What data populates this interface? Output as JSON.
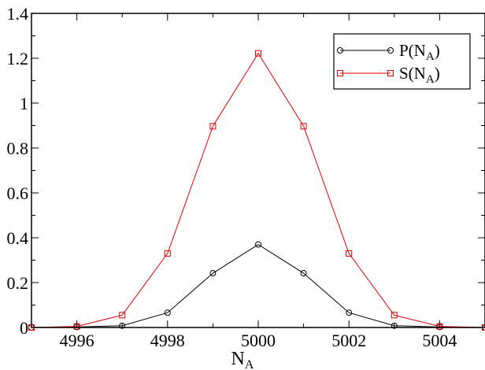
{
  "chart_data": {
    "type": "line",
    "title": "",
    "xlabel": "N",
    "xlabel_sub": "A",
    "ylabel": "",
    "xlim": [
      4995,
      5005
    ],
    "ylim": [
      0,
      1.4
    ],
    "x_ticks": [
      4996,
      4998,
      5000,
      5002,
      5004
    ],
    "y_ticks": [
      0,
      0.2,
      0.4,
      0.6,
      0.8,
      1,
      1.2,
      1.4
    ],
    "grid": false,
    "legend_placement": "top-right",
    "x": [
      4995,
      4996,
      4997,
      4998,
      4999,
      5000,
      5001,
      5002,
      5003,
      5004,
      5005
    ],
    "series": [
      {
        "name": "P(N",
        "name_sub": "A",
        "name_close": ")",
        "color": "#000000",
        "marker": "circle",
        "values": [
          0.0,
          0.002,
          0.008,
          0.066,
          0.242,
          0.37,
          0.242,
          0.066,
          0.008,
          0.002,
          0.0
        ]
      },
      {
        "name": "S(N",
        "name_sub": "A",
        "name_close": ")",
        "color": "#e00000",
        "marker": "square",
        "values": [
          0.0,
          0.005,
          0.055,
          0.33,
          0.897,
          1.222,
          0.897,
          0.33,
          0.055,
          0.005,
          0.0
        ]
      }
    ]
  }
}
